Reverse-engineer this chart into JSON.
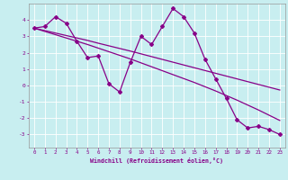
{
  "xlabel": "Windchill (Refroidissement éolien,°C)",
  "bg_color": "#c8eef0",
  "line_color": "#880088",
  "hours": [
    0,
    1,
    2,
    3,
    4,
    5,
    6,
    7,
    8,
    9,
    10,
    11,
    12,
    13,
    14,
    15,
    16,
    17,
    18,
    19,
    20,
    21,
    22,
    23
  ],
  "temp": [
    3.5,
    3.6,
    4.2,
    3.8,
    2.7,
    1.7,
    1.8,
    0.1,
    -0.4,
    1.4,
    3.0,
    2.5,
    3.6,
    4.7,
    4.2,
    3.2,
    1.6,
    0.4,
    -0.8,
    -2.1,
    -2.6,
    -2.5,
    -2.7,
    -3.0
  ],
  "trend1": [
    3.5,
    3.35,
    3.2,
    3.05,
    2.9,
    2.75,
    2.58,
    2.42,
    2.26,
    2.1,
    1.93,
    1.76,
    1.59,
    1.42,
    1.25,
    1.08,
    0.91,
    0.74,
    0.57,
    0.4,
    0.23,
    0.06,
    -0.11,
    -0.28
  ],
  "trend2": [
    3.5,
    3.3,
    3.1,
    2.9,
    2.7,
    2.5,
    2.28,
    2.06,
    1.84,
    1.62,
    1.38,
    1.14,
    0.9,
    0.66,
    0.42,
    0.18,
    -0.08,
    -0.34,
    -0.62,
    -0.9,
    -1.2,
    -1.5,
    -1.82,
    -2.14
  ],
  "ylim": [
    -3.8,
    5.0
  ],
  "yticks": [
    -3,
    -2,
    -1,
    0,
    1,
    2,
    3,
    4
  ],
  "xlim": [
    -0.5,
    23.5
  ]
}
